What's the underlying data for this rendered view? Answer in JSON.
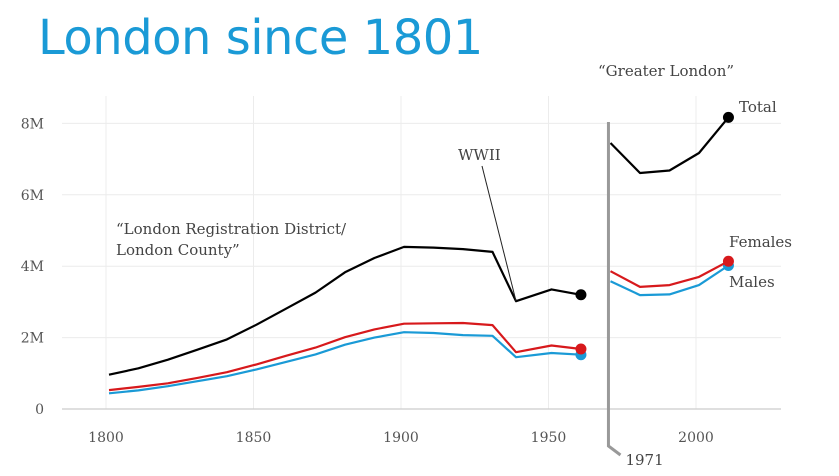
{
  "chart_data": {
    "type": "line",
    "title": "London since 1801",
    "xlabel": "",
    "ylabel": "",
    "xlim": [
      1785,
      2025
    ],
    "ylim": [
      0,
      8.8
    ],
    "xticks": [
      1800,
      1850,
      1900,
      1950,
      2000
    ],
    "xtick_labels": [
      "1800",
      "1850",
      "1900",
      "1950",
      "2000"
    ],
    "yticks": [
      0,
      2,
      4,
      6,
      8
    ],
    "ytick_labels": [
      "0",
      "2M",
      "4M",
      "6M",
      "8M"
    ],
    "grid": true,
    "segments": [
      {
        "name": "London Registration District / London County",
        "label": "“London Registration District/\nLondon County”",
        "x": [
          1801,
          1811,
          1821,
          1831,
          1841,
          1851,
          1861,
          1871,
          1881,
          1891,
          1901,
          1911,
          1921,
          1931,
          1939,
          1951,
          1961
        ],
        "series": [
          {
            "name": "Total",
            "color": "#000000",
            "values": [
              0.96,
              1.14,
              1.38,
              1.66,
              1.95,
              2.36,
              2.81,
              3.26,
              3.83,
              4.23,
              4.54,
              4.52,
              4.48,
              4.4,
              3.02,
              3.35,
              3.2
            ]
          },
          {
            "name": "Females",
            "color": "#d7191c",
            "values": [
              0.53,
              0.62,
              0.72,
              0.87,
              1.03,
              1.25,
              1.49,
              1.72,
              2.01,
              2.23,
              2.39,
              2.4,
              2.41,
              2.35,
              1.59,
              1.78,
              1.68
            ]
          },
          {
            "name": "Males",
            "color": "#1a9ad6",
            "values": [
              0.44,
              0.52,
              0.64,
              0.78,
              0.92,
              1.11,
              1.32,
              1.53,
              1.8,
              2.0,
              2.15,
              2.13,
              2.07,
              2.05,
              1.45,
              1.57,
              1.52
            ]
          }
        ]
      },
      {
        "name": "Greater London",
        "label": "“Greater London”",
        "x": [
          1971,
          1981,
          1991,
          2001,
          2011
        ],
        "series": [
          {
            "name": "Total",
            "color": "#000000",
            "values": [
              7.45,
              6.61,
              6.68,
              7.17,
              8.17
            ]
          },
          {
            "name": "Females",
            "color": "#d7191c",
            "values": [
              3.86,
              3.42,
              3.47,
              3.7,
              4.14
            ]
          },
          {
            "name": "Males",
            "color": "#1a9ad6",
            "values": [
              3.58,
              3.19,
              3.21,
              3.47,
              4.02
            ]
          }
        ]
      }
    ],
    "annotations": [
      {
        "text": "WWII",
        "x": 1939
      },
      {
        "text": "1971",
        "x": 1971
      }
    ],
    "legend": [
      "Total",
      "Females",
      "Males"
    ],
    "legend_placement": "right (end-of-line labels)"
  }
}
